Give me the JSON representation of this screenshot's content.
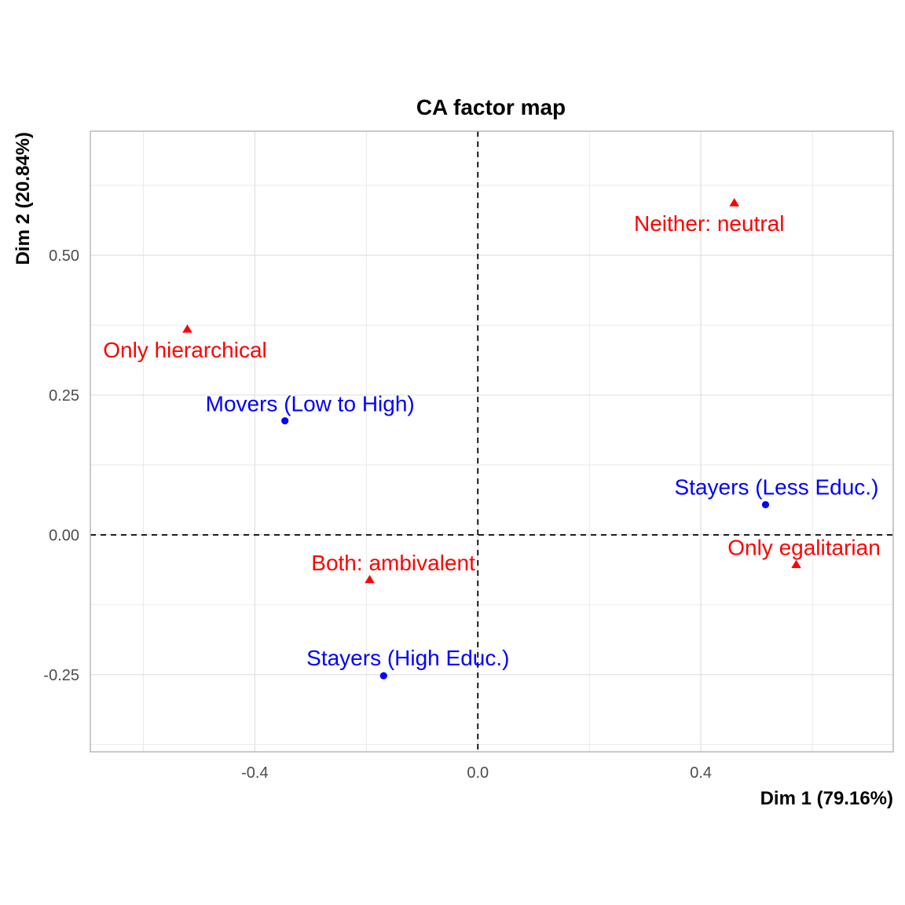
{
  "chart_data": {
    "type": "scatter",
    "title": "CA factor map",
    "xlabel": "Dim 1 (79.16%)",
    "ylabel": "Dim 2 (20.84%)",
    "xlim": [
      -0.695,
      0.745
    ],
    "ylim": [
      -0.388,
      0.722
    ],
    "x_ticks": [
      -0.4,
      0.0,
      0.4
    ],
    "x_tick_labels": [
      "-0.4",
      "0.0",
      "0.4"
    ],
    "y_ticks": [
      -0.25,
      0.0,
      0.25,
      0.5
    ],
    "y_tick_labels": [
      "-0.25",
      "0.00",
      "0.25",
      "0.50"
    ],
    "grid": true,
    "reference_lines": {
      "x": 0,
      "y": 0,
      "style": "dashed"
    },
    "series": [
      {
        "shape": "circle",
        "color": "#0000ff",
        "points": [
          {
            "label": "Movers (Low to High)",
            "x": -0.346,
            "y": 0.204
          },
          {
            "label": "Stayers (Less Educ.)",
            "x": 0.516,
            "y": 0.054
          },
          {
            "label": "Stayers (High Educ.)",
            "x": -0.169,
            "y": -0.252
          }
        ]
      },
      {
        "shape": "triangle",
        "color": "#ff0000",
        "points": [
          {
            "label": "Neither: neutral",
            "x": 0.46,
            "y": 0.594
          },
          {
            "label": "Only hierarchical",
            "x": -0.521,
            "y": 0.368
          },
          {
            "label": "Both: ambivalent",
            "x": -0.194,
            "y": -0.08
          },
          {
            "label": "Only egalitarian",
            "x": 0.571,
            "y": -0.053
          }
        ]
      }
    ]
  }
}
